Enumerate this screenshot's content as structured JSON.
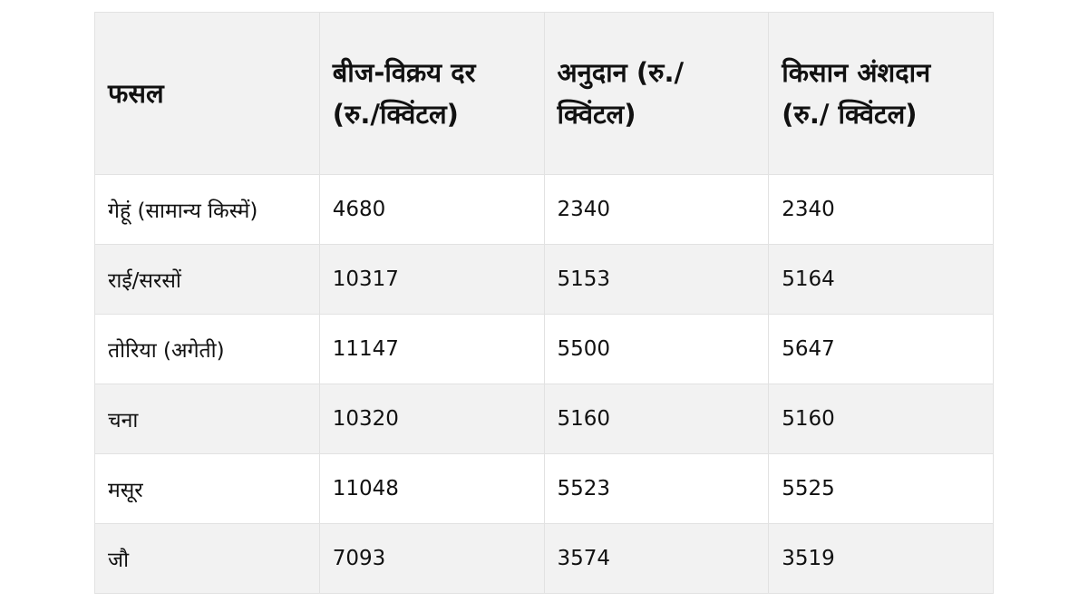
{
  "table": {
    "headers": [
      "फसल",
      "बीज-विक्रय दर (रु./क्विंटल)",
      "अनुदान (रु./ क्विंटल)",
      "किसान अंशदान (रु./ क्विंटल)"
    ],
    "rows": [
      [
        "गेहूं (सामान्य किस्में)",
        "4680",
        "2340",
        "2340"
      ],
      [
        "राई/सरसों",
        "10317",
        "5153",
        "5164"
      ],
      [
        "तोरिया (अगेती)",
        "11147",
        "5500",
        "5647"
      ],
      [
        "चना",
        "10320",
        "5160",
        "5160"
      ],
      [
        "मसूर",
        "11048",
        "5523",
        "5525"
      ],
      [
        "जौ",
        "7093",
        "3574",
        "3519"
      ]
    ]
  },
  "colors": {
    "header_bg": "#f2f2f2",
    "alt_row_bg": "#f2f2f2",
    "border": "#e2e2e2"
  }
}
